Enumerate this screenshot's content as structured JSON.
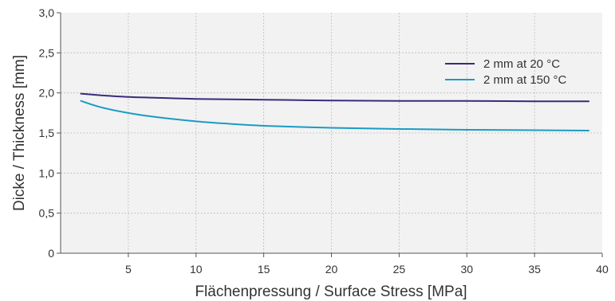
{
  "chart_data": {
    "type": "line",
    "title": "",
    "xlabel": "Flächenpressung / Surface Stress   [MPa]",
    "ylabel": "Dicke / Thickness   [mm]",
    "xlim": [
      0,
      40
    ],
    "ylim": [
      0,
      3.0
    ],
    "xticks": [
      5,
      10,
      15,
      20,
      25,
      30,
      35,
      40
    ],
    "xtick_labels": [
      "5",
      "10",
      "15",
      "20",
      "25",
      "30",
      "35",
      "40"
    ],
    "yticks": [
      0,
      0.5,
      1.0,
      1.5,
      2.0,
      2.5,
      3.0
    ],
    "ytick_labels": [
      "0",
      "0,5",
      "1,0",
      "1,5",
      "2,0",
      "2,5",
      "3,0"
    ],
    "grid": true,
    "legend_position": "top-right",
    "series": [
      {
        "name": "2 mm at 20 °C",
        "color": "#3b2a7a",
        "x": [
          1.5,
          3,
          5,
          7,
          10,
          15,
          20,
          25,
          30,
          35,
          39
        ],
        "y": [
          1.99,
          1.97,
          1.95,
          1.94,
          1.925,
          1.915,
          1.905,
          1.9,
          1.9,
          1.895,
          1.895
        ]
      },
      {
        "name": "2 mm at 150 °C",
        "color": "#1a9bc4",
        "x": [
          1.5,
          3,
          5,
          7,
          10,
          12,
          15,
          20,
          25,
          30,
          35,
          39
        ],
        "y": [
          1.9,
          1.82,
          1.75,
          1.7,
          1.645,
          1.62,
          1.59,
          1.565,
          1.55,
          1.54,
          1.535,
          1.53
        ]
      }
    ]
  }
}
